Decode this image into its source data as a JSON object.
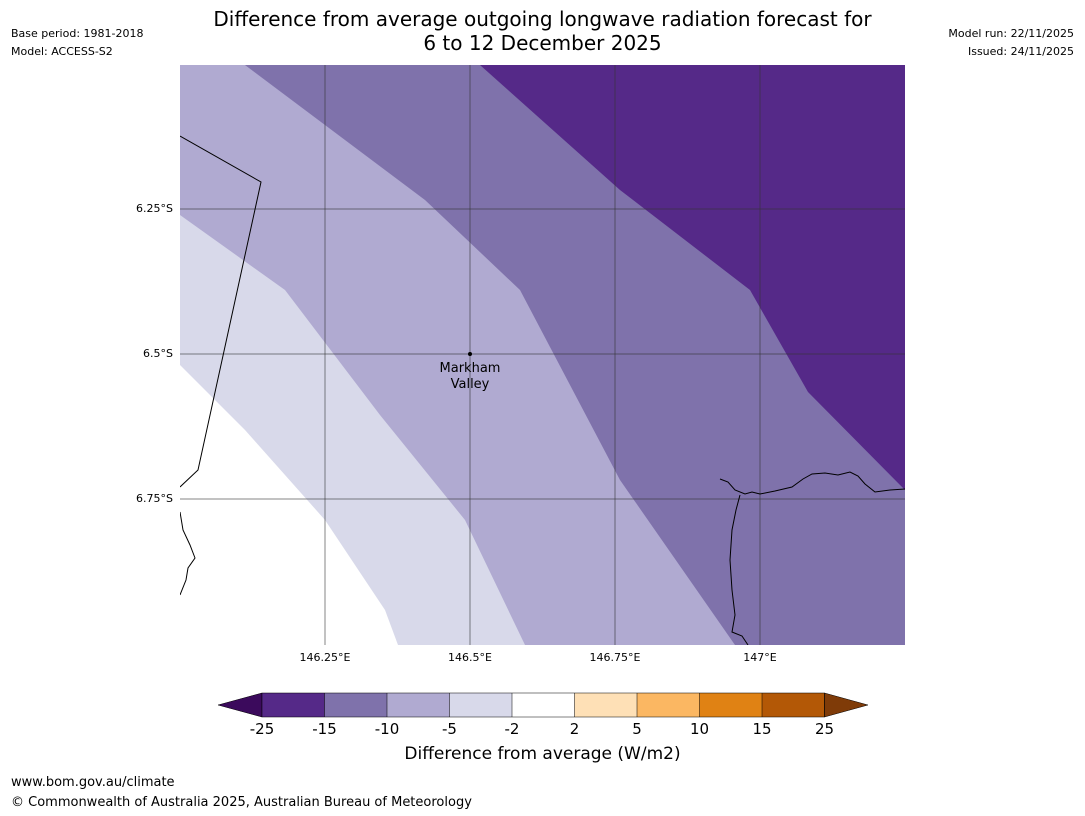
{
  "header": {
    "base_period": "Base period: 1981-2018",
    "model": "Model: ACCESS-S2",
    "model_run": "Model run: 22/11/2025",
    "issued": "Issued: 24/11/2025",
    "title_line1": "Difference from average outgoing longwave radiation forecast for",
    "title_line2": "6 to 12 December 2025"
  },
  "map": {
    "place_label_line1": "Markham",
    "place_label_line2": "Valley",
    "lat_ticks": [
      "6.25°S",
      "6.5°S",
      "6.75°S"
    ],
    "lon_ticks": [
      "146.25°E",
      "146.5°E",
      "146.75°E",
      "147°E"
    ],
    "colors": {
      "band_minus15_minus10": "#7f72ab",
      "band_minus10_minus5": "#b0aad1",
      "band_minus5_minus2": "#d8d9ea",
      "band_below_minus15": "#552988",
      "band_neutral": "#ffffff"
    }
  },
  "colorbar": {
    "ticks": [
      "-25",
      "-15",
      "-10",
      "-5",
      "-2",
      "2",
      "5",
      "10",
      "15",
      "25"
    ],
    "label": "Difference from average (W/m2)",
    "colors": [
      "#3b0a5c",
      "#552988",
      "#7f72ab",
      "#b0aad1",
      "#d8d9ea",
      "#ffffff",
      "#fee0b6",
      "#fbb762",
      "#e08214",
      "#b35806",
      "#7f3b08"
    ]
  },
  "footer": {
    "url": "www.bom.gov.au/climate",
    "copyright": "© Commonwealth of Australia 2025, Australian Bureau of Meteorology"
  }
}
